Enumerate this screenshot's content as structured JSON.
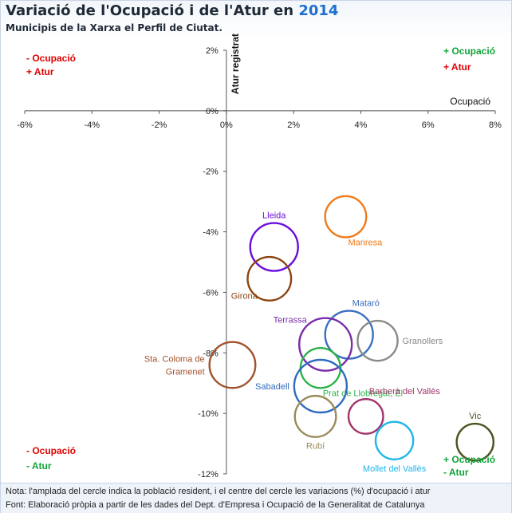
{
  "header": {
    "title_main": "Variació de l'Ocupació i de l'Atur en ",
    "title_year": "2014",
    "subtitle": "Municipis de la Xarxa el Perfil de Ciutat."
  },
  "quadrants": {
    "top_left": {
      "line1": "- Ocupació",
      "line2": "+ Atur"
    },
    "top_right": {
      "line1": "+ Ocupació",
      "line2": "+ Atur"
    },
    "bottom_left": {
      "line1": "- Ocupació",
      "line2": "- Atur"
    },
    "bottom_right": {
      "line1": "+ Ocupació",
      "line2": "- Atur"
    }
  },
  "colors": {
    "increase": "#e00000",
    "decrease": "#12a339",
    "axis": "#555555",
    "title_year": "#1f6fd0"
  },
  "notes": {
    "line1": "Nota: l'amplada del cercle indica la població resident, i el centre del cercle les variacions (%) d'ocupació i atur",
    "line2": "Font: Elaboració pròpia a partir de les dades del Dept. d'Empresa i Ocupació de la Generalitat de Catalunya"
  },
  "chart_data": {
    "type": "scatter",
    "title": "Variació de l'Ocupació i de l'Atur en 2014",
    "subtitle": "Municipis de la Xarxa el Perfil de Ciutat.",
    "xlabel": "Ocupació",
    "ylabel": "Atur registrat",
    "xlim": [
      -6,
      8
    ],
    "ylim": [
      -12,
      2
    ],
    "x_ticks": [
      -6,
      -4,
      -2,
      0,
      2,
      4,
      6,
      8
    ],
    "y_ticks": [
      2,
      0,
      -2,
      -4,
      -6,
      -8,
      -10,
      -12
    ],
    "tick_format": "%",
    "grid": false,
    "bubble_size": "población resident (relative)",
    "points": [
      {
        "label": "Lleida",
        "x": 1.42,
        "y": -4.5,
        "size": 1.0,
        "color": "#6a0ddb",
        "label_pos": "above"
      },
      {
        "label": "Manresa",
        "x": 3.55,
        "y": -3.5,
        "size": 0.72,
        "color": "#f07a1a",
        "label_pos": "below-right"
      },
      {
        "label": "Girona",
        "x": 1.28,
        "y": -5.55,
        "size": 0.82,
        "color": "#8b4513",
        "label_pos": "below-left"
      },
      {
        "label": "Mataró",
        "x": 3.65,
        "y": -7.4,
        "size": 1.0,
        "color": "#3a6fbf",
        "label_pos": "above-right"
      },
      {
        "label": "Terrassa",
        "x": 2.95,
        "y": -7.72,
        "size": 1.2,
        "color": "#7a2ea8",
        "label_pos": "above-left"
      },
      {
        "label": "Granollers",
        "x": 4.5,
        "y": -7.6,
        "size": 0.67,
        "color": "#8a8a8a",
        "label_pos": "right"
      },
      {
        "label": "Sta. Coloma de Gramenet",
        "x": 0.18,
        "y": -8.4,
        "size": 0.92,
        "color": "#a0522d",
        "label_pos": "left"
      },
      {
        "label": "Prat de Llobregat, El",
        "x": 2.8,
        "y": -8.5,
        "size": 0.67,
        "color": "#2ab34a",
        "label_pos": "below-right"
      },
      {
        "label": "Sabadell",
        "x": 2.8,
        "y": -9.1,
        "size": 1.2,
        "color": "#2f6bbf",
        "label_pos": "left"
      },
      {
        "label": "Barberà del Vallès",
        "x": 4.15,
        "y": -10.1,
        "size": 0.45,
        "color": "#a0356a",
        "label_pos": "above-right"
      },
      {
        "label": "Rubí",
        "x": 2.65,
        "y": -10.1,
        "size": 0.72,
        "color": "#9b8a5a",
        "label_pos": "below"
      },
      {
        "label": "Mollet del Vallès",
        "x": 5.0,
        "y": -10.9,
        "size": 0.57,
        "color": "#1fb5ea",
        "label_pos": "below"
      },
      {
        "label": "Vic",
        "x": 7.4,
        "y": -10.95,
        "size": 0.54,
        "color": "#4b5320",
        "label_pos": "above"
      }
    ]
  }
}
